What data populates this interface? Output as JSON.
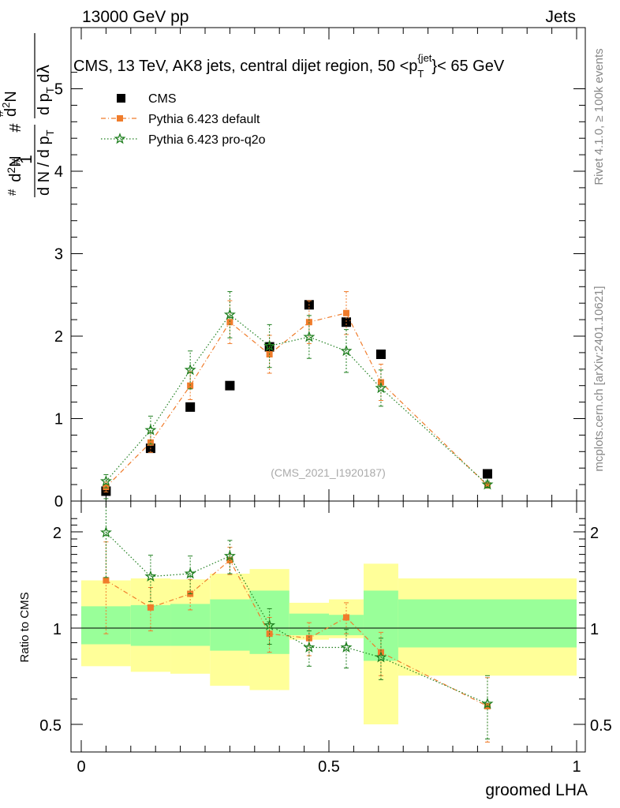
{
  "header": {
    "energy_label": "13000 GeV pp",
    "category_label": "Jets"
  },
  "side_labels": {
    "rivet": "Rivet 4.1.0, ≥ 100k events",
    "source": "mcplots.cern.ch [arXiv:2401.10621]"
  },
  "watermark": "(CMS_2021_I1920187)",
  "chart_data": [
    {
      "type": "scatter",
      "title": "CMS, 13 TeV, AK8 jets, central dijet region, 50 <p_T^{jet}< 65 GeV",
      "title_parts": {
        "prefix": "CMS, 13 TeV, AK8 jets, central dijet region, 50 <p",
        "sub": "T",
        "sup": "{jet",
        "suffix": "}< 65 GeV"
      },
      "ylabel": "1/(dN/dpT) d²N/(dpT dλ)",
      "xlim": [
        0,
        1
      ],
      "ylim": [
        0,
        5.5
      ],
      "yticks": [
        0,
        1,
        2,
        3,
        4,
        5
      ],
      "legend_position": "top-left",
      "series": [
        {
          "name": "CMS",
          "color": "#000000",
          "marker": "square",
          "x": [
            0.05,
            0.14,
            0.22,
            0.3,
            0.38,
            0.46,
            0.535,
            0.605,
            0.82
          ],
          "y": [
            0.12,
            0.64,
            1.14,
            1.4,
            1.87,
            2.38,
            2.17,
            1.78,
            0.33
          ],
          "err": [
            0.01,
            0.02,
            0.02,
            0.02,
            0.03,
            0.04,
            0.04,
            0.03,
            0.01
          ]
        },
        {
          "name": "Pythia 6.423 default",
          "color": "#f07c2b",
          "marker": "square-small",
          "line": "dashdot",
          "x": [
            0.05,
            0.14,
            0.22,
            0.3,
            0.38,
            0.46,
            0.535,
            0.605,
            0.82
          ],
          "y": [
            0.17,
            0.71,
            1.4,
            2.17,
            1.78,
            2.17,
            2.28,
            1.44,
            0.19
          ],
          "err": [
            0.06,
            0.12,
            0.17,
            0.26,
            0.23,
            0.26,
            0.26,
            0.22,
            0.03
          ]
        },
        {
          "name": "Pythia 6.423 pro-q2o",
          "color": "#1f7f1f",
          "marker": "star",
          "line": "dotted",
          "x": [
            0.05,
            0.14,
            0.22,
            0.3,
            0.38,
            0.46,
            0.535,
            0.605,
            0.82
          ],
          "y": [
            0.24,
            0.86,
            1.59,
            2.26,
            1.88,
            1.99,
            1.82,
            1.37,
            0.2
          ],
          "err": [
            0.08,
            0.17,
            0.23,
            0.28,
            0.26,
            0.26,
            0.26,
            0.22,
            0.04
          ]
        }
      ]
    },
    {
      "type": "line",
      "ylabel": "Ratio to CMS",
      "xlabel": "groomed LHA",
      "xlim": [
        0,
        1
      ],
      "ylim": [
        0.4,
        2.3
      ],
      "yticks": [
        0.5,
        1,
        2
      ],
      "xticks": [
        0,
        0.5,
        1
      ],
      "band_edges": [
        0.0,
        0.1,
        0.18,
        0.26,
        0.34,
        0.42,
        0.5,
        0.57,
        0.64,
        1.0
      ],
      "bands_yellow": [
        [
          0.76,
          1.41
        ],
        [
          0.73,
          1.43
        ],
        [
          0.72,
          1.42
        ],
        [
          0.66,
          1.48
        ],
        [
          0.64,
          1.53
        ],
        [
          0.92,
          1.2
        ],
        [
          0.93,
          1.23
        ],
        [
          0.5,
          1.59
        ],
        [
          0.71,
          1.43
        ]
      ],
      "bands_green": [
        [
          0.89,
          1.17
        ],
        [
          0.88,
          1.18
        ],
        [
          0.88,
          1.19
        ],
        [
          0.85,
          1.23
        ],
        [
          0.83,
          1.31
        ],
        [
          0.95,
          1.11
        ],
        [
          0.95,
          1.1
        ],
        [
          0.79,
          1.31
        ],
        [
          0.87,
          1.23
        ]
      ],
      "series": [
        {
          "name": "Pythia 6.423 default",
          "color": "#f07c2b",
          "marker": "square-small",
          "line": "dashdot",
          "x": [
            0.05,
            0.14,
            0.22,
            0.3,
            0.38,
            0.46,
            0.535,
            0.605,
            0.82
          ],
          "y": [
            1.41,
            1.16,
            1.28,
            1.63,
            0.96,
            0.93,
            1.08,
            0.84,
            0.57
          ],
          "err": [
            0.45,
            0.18,
            0.14,
            0.16,
            0.12,
            0.11,
            0.12,
            0.13,
            0.13
          ]
        },
        {
          "name": "Pythia 6.423 pro-q2o",
          "color": "#1f7f1f",
          "marker": "star",
          "line": "dotted",
          "x": [
            0.05,
            0.14,
            0.22,
            0.3,
            0.38,
            0.46,
            0.535,
            0.605,
            0.82
          ],
          "y": [
            1.99,
            1.45,
            1.48,
            1.68,
            1.02,
            0.87,
            0.87,
            0.81,
            0.58
          ],
          "err": [
            0.55,
            0.24,
            0.2,
            0.2,
            0.13,
            0.11,
            0.12,
            0.12,
            0.13
          ]
        }
      ]
    }
  ]
}
